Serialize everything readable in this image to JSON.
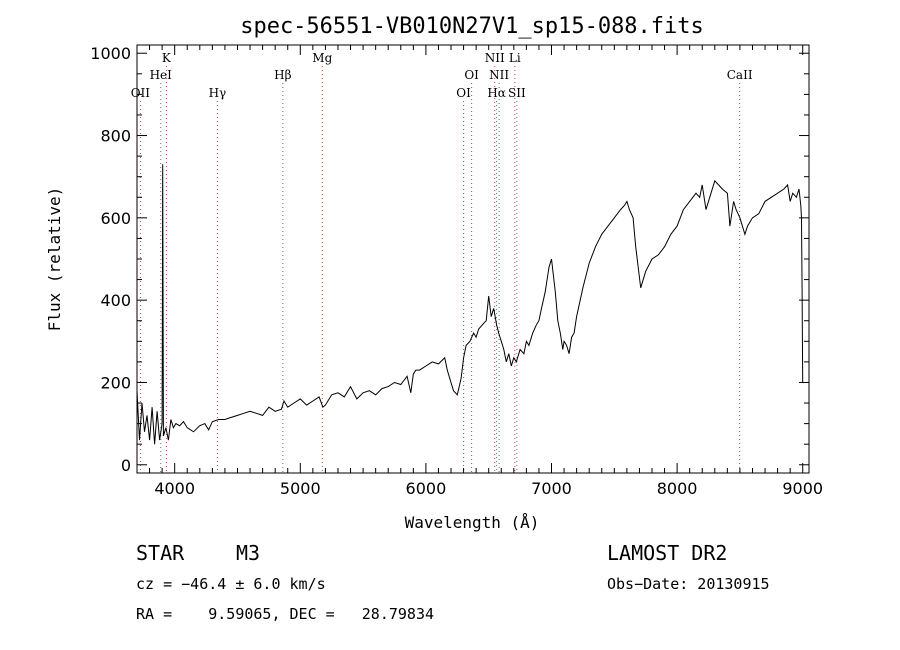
{
  "chart_data": {
    "type": "line",
    "title": "spec-56551-VB010N27V1_sp15-088.fits",
    "xlabel": "Wavelength (Å)",
    "ylabel": "Flux (relative)",
    "xlim": [
      3700,
      9050
    ],
    "ylim": [
      -20,
      1020
    ],
    "xticks": [
      4000,
      5000,
      6000,
      7000,
      8000,
      9000
    ],
    "yticks": [
      0,
      200,
      400,
      600,
      800,
      1000
    ],
    "grid": false,
    "series": [
      {
        "x": [
          3700,
          3720,
          3740,
          3760,
          3780,
          3800,
          3820,
          3840,
          3860,
          3880,
          3900,
          3905,
          3910,
          3930,
          3950,
          3970,
          3990,
          4010,
          4040,
          4070,
          4100,
          4150,
          4200,
          4240,
          4270,
          4300,
          4350,
          4400,
          4450,
          4500,
          4550,
          4600,
          4650,
          4700,
          4750,
          4800,
          4850,
          4870,
          4900,
          4950,
          5000,
          5050,
          5100,
          5150,
          5180,
          5200,
          5250,
          5300,
          5350,
          5400,
          5450,
          5500,
          5550,
          5600,
          5650,
          5700,
          5750,
          5800,
          5850,
          5880,
          5900,
          5920,
          5950,
          6000,
          6050,
          6100,
          6150,
          6170,
          6200,
          6220,
          6250,
          6280,
          6300,
          6320,
          6350,
          6380,
          6400,
          6420,
          6450,
          6480,
          6500,
          6520,
          6540,
          6563,
          6580,
          6600,
          6620,
          6640,
          6660,
          6680,
          6700,
          6720,
          6750,
          6780,
          6800,
          6820,
          6850,
          6880,
          6900,
          6920,
          6950,
          6980,
          7000,
          7030,
          7050,
          7070,
          7090,
          7100,
          7120,
          7140,
          7160,
          7180,
          7200,
          7250,
          7300,
          7350,
          7400,
          7450,
          7500,
          7550,
          7580,
          7600,
          7620,
          7650,
          7670,
          7690,
          7710,
          7750,
          7800,
          7850,
          7900,
          7950,
          8000,
          8050,
          8100,
          8150,
          8180,
          8200,
          8230,
          8250,
          8270,
          8300,
          8330,
          8360,
          8400,
          8420,
          8450,
          8470,
          8500,
          8520,
          8540,
          8560,
          8600,
          8650,
          8700,
          8750,
          8800,
          8850,
          8880,
          8900,
          8920,
          8950,
          8970,
          8985,
          8990,
          8995,
          9000
        ],
        "y": [
          180,
          60,
          150,
          80,
          120,
          60,
          140,
          50,
          130,
          60,
          100,
          730,
          70,
          90,
          60,
          110,
          90,
          100,
          95,
          105,
          90,
          80,
          95,
          100,
          85,
          105,
          110,
          110,
          115,
          120,
          125,
          130,
          125,
          120,
          140,
          130,
          135,
          155,
          140,
          150,
          160,
          145,
          155,
          165,
          140,
          145,
          170,
          175,
          165,
          190,
          160,
          175,
          180,
          170,
          185,
          190,
          200,
          195,
          215,
          175,
          220,
          230,
          230,
          240,
          250,
          245,
          260,
          230,
          200,
          180,
          170,
          210,
          260,
          290,
          300,
          320,
          310,
          330,
          340,
          350,
          410,
          360,
          380,
          340,
          320,
          300,
          280,
          250,
          270,
          240,
          260,
          250,
          280,
          270,
          300,
          290,
          320,
          340,
          350,
          380,
          420,
          480,
          500,
          420,
          350,
          320,
          280,
          300,
          290,
          270,
          310,
          320,
          360,
          430,
          490,
          530,
          560,
          580,
          600,
          620,
          630,
          640,
          620,
          600,
          530,
          480,
          430,
          470,
          500,
          510,
          530,
          560,
          580,
          620,
          640,
          660,
          650,
          680,
          620,
          640,
          660,
          690,
          680,
          670,
          660,
          580,
          640,
          620,
          600,
          580,
          560,
          580,
          600,
          610,
          640,
          650,
          660,
          670,
          680,
          640,
          660,
          650,
          670,
          630,
          600,
          420,
          200
        ]
      }
    ],
    "lines": [
      {
        "label": "OII",
        "wave": 3727,
        "tier": 3
      },
      {
        "label": "K",
        "wave": 3934,
        "tier": 1
      },
      {
        "label": "HeI",
        "wave": 3889,
        "tier": 2
      },
      {
        "label": "Hγ",
        "wave": 4340,
        "tier": 3
      },
      {
        "label": "Hβ",
        "wave": 4861,
        "tier": 2
      },
      {
        "label": "Mg",
        "wave": 5175,
        "tier": 1
      },
      {
        "label": "OI",
        "wave": 6300,
        "tier": 3
      },
      {
        "label": "OI",
        "wave": 6364,
        "tier": 2
      },
      {
        "label": "NII",
        "wave": 6548,
        "tier": 1
      },
      {
        "label": "NII",
        "wave": 6583,
        "tier": 2
      },
      {
        "label": "Hα",
        "wave": 6563,
        "tier": 3
      },
      {
        "label": "Li",
        "wave": 6708,
        "tier": 1
      },
      {
        "label": "SII",
        "wave": 6724,
        "tier": 3
      },
      {
        "label": "CaII",
        "wave": 8498,
        "tier": 2
      }
    ]
  },
  "info": {
    "object_class": "STAR",
    "subclass": "M3",
    "survey": "LAMOST DR2",
    "cz": "cz = −46.4 ± 6.0 km/s",
    "obs_date": "Obs−Date: 20130915",
    "coords": "RA =    9.59065, DEC =   28.79834"
  },
  "colors": {
    "line_marker": "#d04040",
    "spectrum": "#000000"
  }
}
